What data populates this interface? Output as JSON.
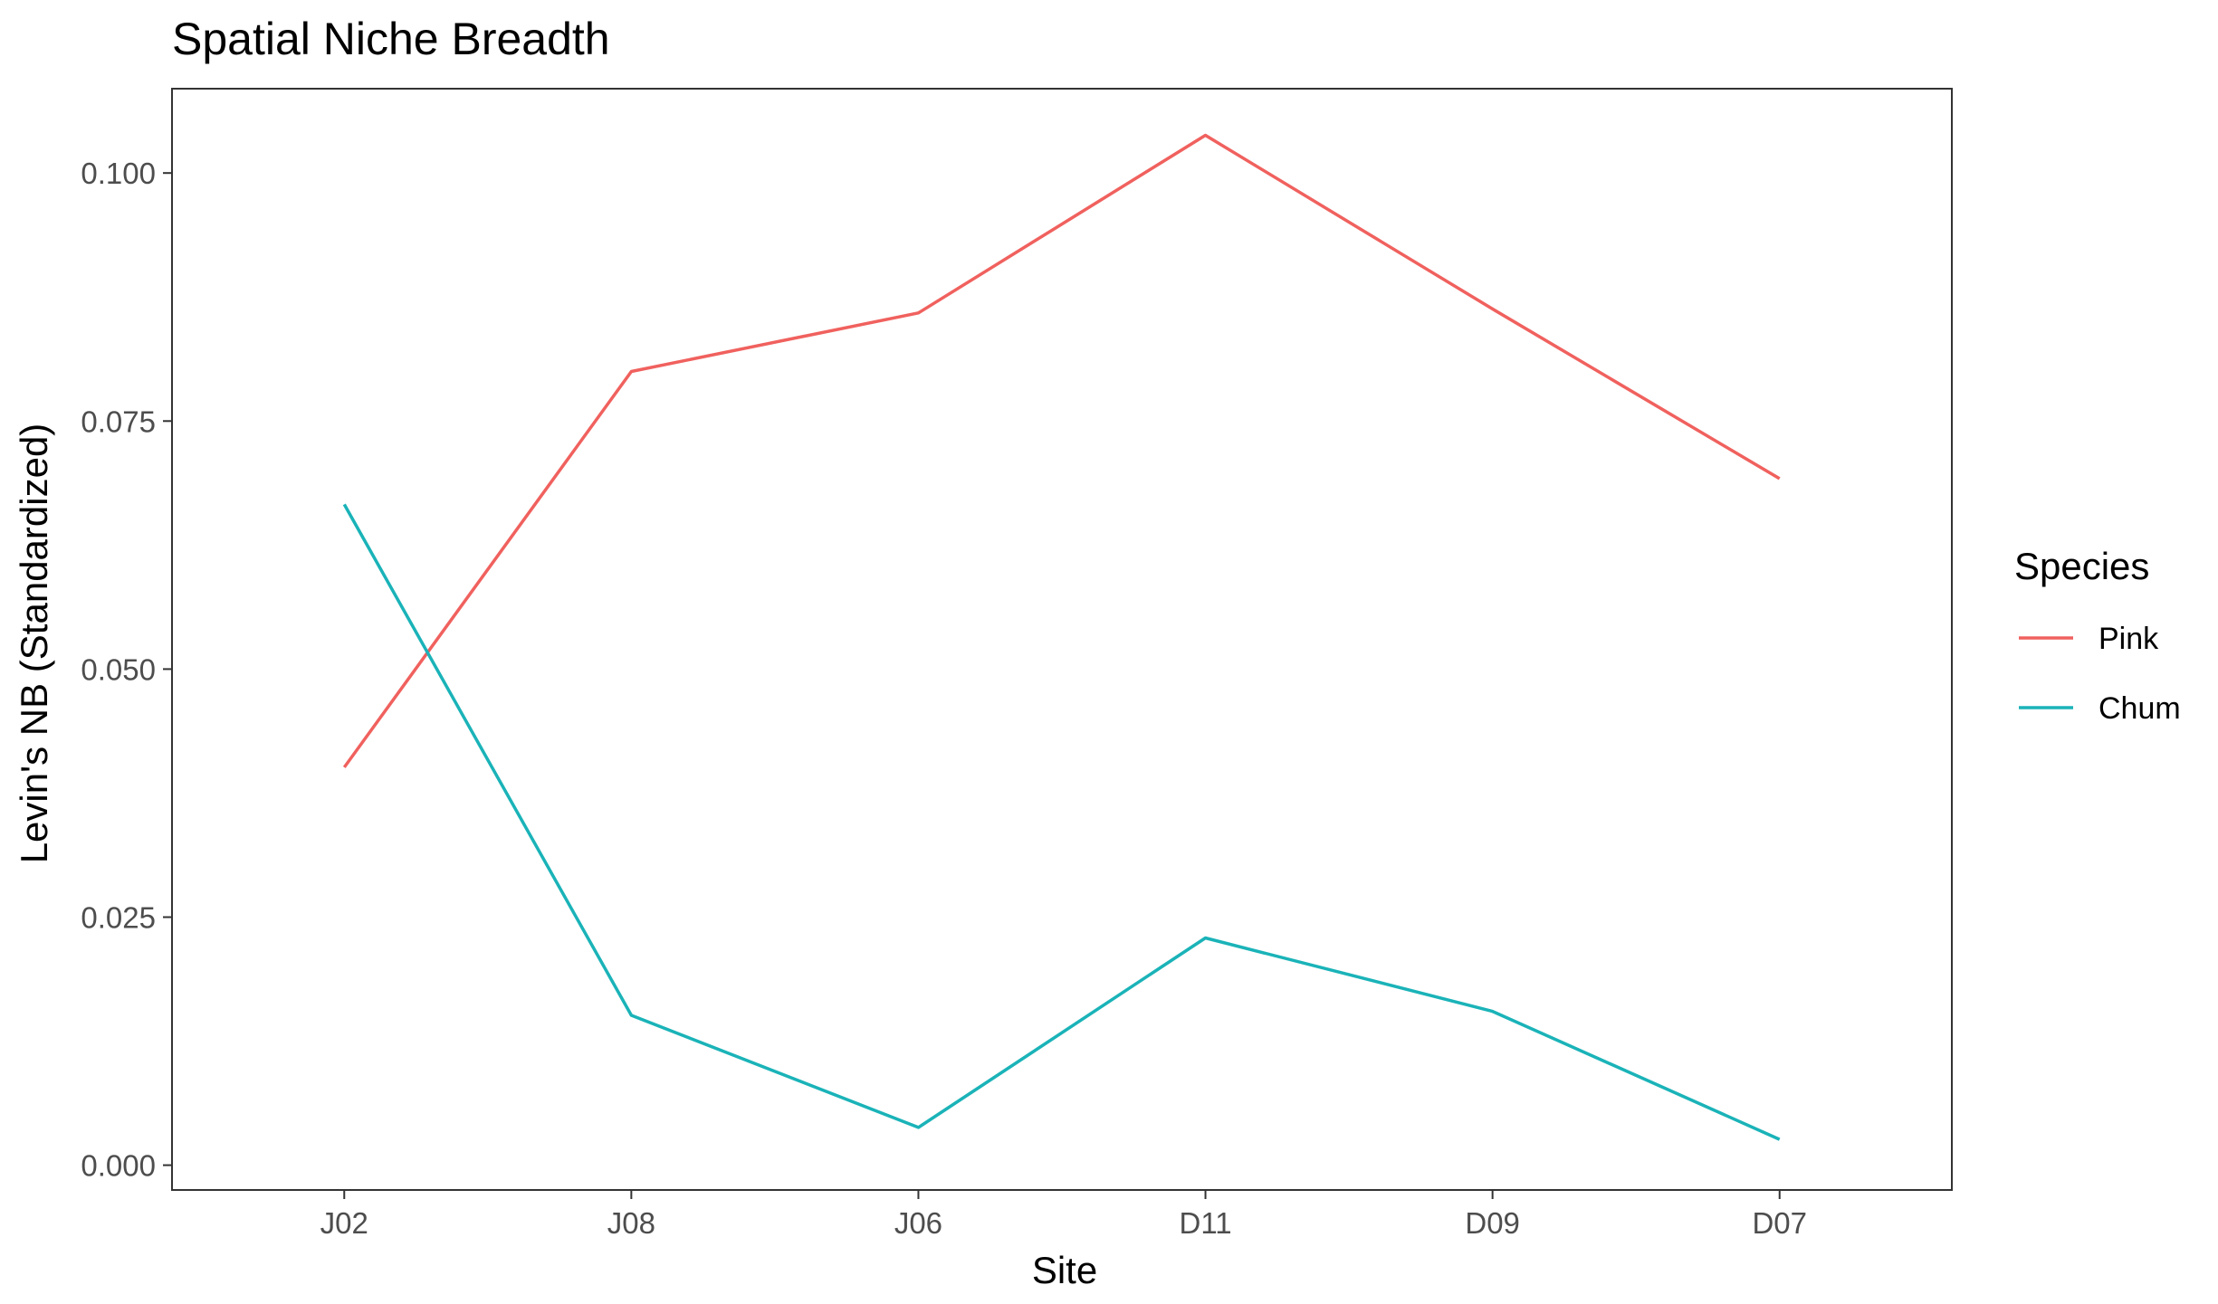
{
  "chart_data": {
    "type": "line",
    "title": "Spatial Niche Breadth",
    "xlabel": "Site",
    "ylabel": "Levin's NB (Standardized)",
    "categories": [
      "J02",
      "J08",
      "J06",
      "D11",
      "D09",
      "D07"
    ],
    "ylim": [
      -0.0025,
      0.1085
    ],
    "yticks": [
      0.0,
      0.025,
      0.05,
      0.075,
      0.1
    ],
    "ytick_labels": [
      "0.000",
      "0.025",
      "0.050",
      "0.075",
      "0.100"
    ],
    "grid": false,
    "legend": {
      "title": "Species",
      "placement": "right"
    },
    "series": [
      {
        "name": "Pink",
        "color": "#f0615e",
        "values": [
          0.0401,
          0.08,
          0.0859,
          0.1038,
          0.0863,
          0.0692
        ]
      },
      {
        "name": "Chum",
        "color": "#1ab3b8",
        "values": [
          0.0666,
          0.0151,
          0.0038,
          0.0229,
          0.0155,
          0.0026
        ]
      }
    ]
  }
}
